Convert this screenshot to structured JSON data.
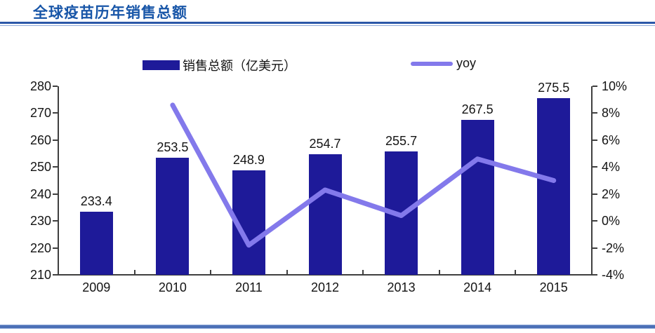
{
  "title": "全球疫苗历年销售总额",
  "legend": {
    "bars_label": "销售总额（亿美元）",
    "line_label": "yoy"
  },
  "chart_data": {
    "type": "bar",
    "subtype": "bar-with-line-overlay",
    "title": "全球疫苗历年销售总额",
    "categories": [
      "2009",
      "2010",
      "2011",
      "2012",
      "2013",
      "2014",
      "2015"
    ],
    "series": [
      {
        "name": "销售总额（亿美元）",
        "type": "bar",
        "axis": "left",
        "values": [
          233.4,
          253.5,
          248.9,
          254.7,
          255.7,
          267.5,
          275.5
        ],
        "labels": [
          "233.4",
          "253.5",
          "248.9",
          "254.7",
          "255.7",
          "267.5",
          "275.5"
        ]
      },
      {
        "name": "yoy",
        "type": "line",
        "axis": "right",
        "values": [
          null,
          8.6,
          -1.8,
          2.3,
          0.4,
          4.6,
          3.0
        ]
      }
    ],
    "left_axis": {
      "min": 210,
      "max": 280,
      "step": 10,
      "ticks": [
        "280",
        "270",
        "260",
        "250",
        "240",
        "230",
        "220",
        "210"
      ]
    },
    "right_axis": {
      "min": -4,
      "max": 10,
      "step": 2,
      "ticks": [
        "10%",
        "8%",
        "6%",
        "4%",
        "2%",
        "0%",
        "-2%",
        "-4%"
      ]
    },
    "grid": false,
    "legend_position": "top",
    "colors": {
      "bar": "#1e1a99",
      "line": "#8379eb",
      "axis": "#3f3f3f",
      "text": "#141414",
      "title": "#1856a8"
    }
  }
}
